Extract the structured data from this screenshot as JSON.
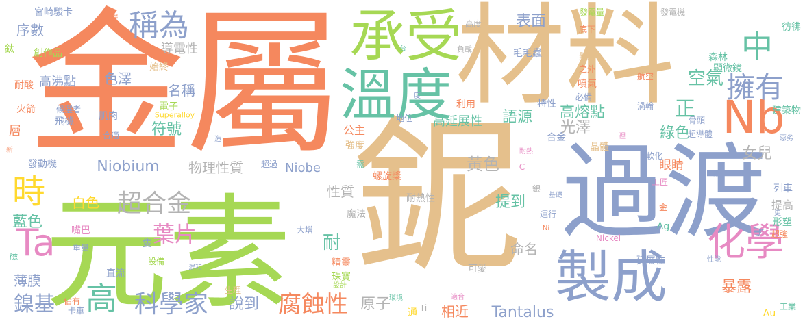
{
  "palette": {
    "orange": "#f5885e",
    "tan": "#e5c08c",
    "green": "#a6d854",
    "blue": "#8da0cb",
    "teal": "#66c2a5",
    "pink": "#e78ac3",
    "yellow": "#ffd92f",
    "gray": "#b3b3b3"
  },
  "words": [
    {
      "text": "鈮",
      "color": "#e5c08c"
    },
    {
      "text": "金屬",
      "color": "#f5885e"
    },
    {
      "text": "元素",
      "color": "#a6d854"
    },
    {
      "text": "材料",
      "color": "#e5c08c"
    },
    {
      "text": "過渡",
      "color": "#8da0cb"
    },
    {
      "text": "承受",
      "color": "#a6d854"
    },
    {
      "text": "溫度",
      "color": "#66c2a5"
    },
    {
      "text": "製成",
      "color": "#8da0cb"
    },
    {
      "text": "Nb",
      "color": "#f5885e"
    },
    {
      "text": "化學",
      "color": "#e78ac3"
    },
    {
      "text": "中",
      "color": "#66c2a5"
    },
    {
      "text": "擁有",
      "color": "#8da0cb"
    },
    {
      "text": "Ta",
      "color": "#e78ac3"
    },
    {
      "text": "時",
      "color": "#ffd92f"
    },
    {
      "text": "稱為",
      "color": "#8da0cb"
    },
    {
      "text": "高",
      "color": "#66c2a5"
    },
    {
      "text": "科學家",
      "color": "#8da0cb"
    },
    {
      "text": "腐蝕性",
      "color": "#f5885e"
    },
    {
      "text": "超合金",
      "color": "#b3b3b3"
    },
    {
      "text": "葉片",
      "color": "#e78ac3"
    },
    {
      "text": "鎳基",
      "color": "#8da0cb"
    },
    {
      "text": "空氣",
      "color": "#66c2a5"
    },
    {
      "text": "正",
      "color": "#66c2a5"
    },
    {
      "text": "表面",
      "color": "#8da0cb"
    },
    {
      "text": "序數",
      "color": "#8da0cb"
    },
    {
      "text": "Niobium",
      "color": "#8da0cb"
    },
    {
      "text": "Niobe",
      "color": "#8da0cb"
    },
    {
      "text": "Tantalus",
      "color": "#8da0cb"
    },
    {
      "text": "高熔點",
      "color": "#66c2a5"
    },
    {
      "text": "光澤",
      "color": "#b3b3b3"
    },
    {
      "text": "綠色",
      "color": "#66c2a5"
    },
    {
      "text": "語源",
      "color": "#66c2a5"
    },
    {
      "text": "女兒",
      "color": "#b3b3b3"
    },
    {
      "text": "暴露",
      "color": "#f5885e"
    },
    {
      "text": "說到",
      "color": "#8da0cb"
    },
    {
      "text": "原子",
      "color": "#b3b3b3"
    },
    {
      "text": "相近",
      "color": "#f5885e"
    },
    {
      "text": "提到",
      "color": "#66c2a5"
    },
    {
      "text": "黃色",
      "color": "#b3b3b3"
    },
    {
      "text": "符號",
      "color": "#66c2a5"
    },
    {
      "text": "白色",
      "color": "#ffd92f"
    },
    {
      "text": "藍色",
      "color": "#66c2a5"
    },
    {
      "text": "薄膜",
      "color": "#8da0cb"
    },
    {
      "text": "物理性質",
      "color": "#b3b3b3"
    },
    {
      "text": "性質",
      "color": "#b3b3b3"
    },
    {
      "text": "高沸點",
      "color": "#8da0cb"
    },
    {
      "text": "色澤",
      "color": "#8da0cb"
    },
    {
      "text": "名稱",
      "color": "#8da0cb"
    },
    {
      "text": "導電性",
      "color": "#b3b3b3"
    },
    {
      "text": "耐",
      "color": "#66c2a5"
    },
    {
      "text": "命名",
      "color": "#b3b3b3"
    },
    {
      "text": "高延展性",
      "color": "#66c2a5"
    },
    {
      "text": "眼睛",
      "color": "#f5885e"
    },
    {
      "text": "提高",
      "color": "#b3b3b3"
    },
    {
      "text": "顯微鏡",
      "color": "#66c2a5"
    },
    {
      "text": "森林",
      "color": "#66c2a5"
    },
    {
      "text": "建築物",
      "color": "#66c2a5"
    },
    {
      "text": "彷彿",
      "color": "#66c2a5"
    },
    {
      "text": "毛毛蟲",
      "color": "#8da0cb"
    },
    {
      "text": "宮崎駿卡",
      "color": "#8da0cb"
    },
    {
      "text": "創作品",
      "color": "#a6d854"
    },
    {
      "text": "鈦",
      "color": "#a6d854"
    },
    {
      "text": "耐酸",
      "color": "#f5885e"
    },
    {
      "text": "始終",
      "color": "#e5c08c"
    },
    {
      "text": "電子",
      "color": "#a6d854"
    },
    {
      "text": "Superalloy",
      "color": "#ffd92f"
    },
    {
      "text": "火箭",
      "color": "#f5885e"
    },
    {
      "text": "候選者",
      "color": "#8da0cb"
    },
    {
      "text": "飛機",
      "color": "#8da0cb"
    },
    {
      "text": "肌肉",
      "color": "#8da0cb"
    },
    {
      "text": "層",
      "color": "#f5885e"
    },
    {
      "text": "合適",
      "color": "#8da0cb"
    },
    {
      "text": "公主",
      "color": "#f5885e"
    },
    {
      "text": "地位",
      "color": "#8da0cb"
    },
    {
      "text": "利用",
      "color": "#f5885e"
    },
    {
      "text": "強度",
      "color": "#e5c08c"
    },
    {
      "text": "特性",
      "color": "#8da0cb"
    },
    {
      "text": "合金",
      "color": "#8da0cb"
    },
    {
      "text": "晶體",
      "color": "#e5c08c"
    },
    {
      "text": "發動機",
      "color": "#8da0cb"
    },
    {
      "text": "超過",
      "color": "#8da0cb"
    },
    {
      "text": "需",
      "color": "#66c2a5"
    },
    {
      "text": "螺旋槳",
      "color": "#f5885e"
    },
    {
      "text": "耐熱性",
      "color": "#b3b3b3"
    },
    {
      "text": "魔法",
      "color": "#b3b3b3"
    },
    {
      "text": "嘴巴",
      "color": "#e78ac3"
    },
    {
      "text": "隻",
      "color": "#8da0cb"
    },
    {
      "text": "重量",
      "color": "#8da0cb"
    },
    {
      "text": "設備",
      "color": "#a6d854"
    },
    {
      "text": "精靈",
      "color": "#f5885e"
    },
    {
      "text": "珠寶",
      "color": "#a6d854"
    },
    {
      "text": "可愛",
      "color": "#b3b3b3"
    },
    {
      "text": "延展性",
      "color": "#8da0cb"
    },
    {
      "text": "Nickel",
      "color": "#e78ac3"
    },
    {
      "text": "形塑",
      "color": "#66c2a5"
    },
    {
      "text": "超強",
      "color": "#f5885e"
    },
    {
      "text": "Ag",
      "color": "#66c2a5"
    },
    {
      "text": "Au",
      "color": "#ffd92f"
    },
    {
      "text": "工業",
      "color": "#66c2a5"
    },
    {
      "text": "列車",
      "color": "#8da0cb"
    },
    {
      "text": "佔有",
      "color": "#f5885e"
    },
    {
      "text": "卡車",
      "color": "#8da0cb"
    },
    {
      "text": "直流",
      "color": "#8da0cb"
    },
    {
      "text": "生理",
      "color": "#e5c08c"
    },
    {
      "text": "設計",
      "color": "#a6d854"
    },
    {
      "text": "環境",
      "color": "#66c2a5"
    },
    {
      "text": "通",
      "color": "#ffd92f"
    },
    {
      "text": "Ti",
      "color": "#b3b3b3"
    },
    {
      "text": "適合",
      "color": "#e78ac3"
    },
    {
      "text": "大增",
      "color": "#8da0cb"
    },
    {
      "text": "混和",
      "color": "#8da0cb"
    },
    {
      "text": "運行",
      "color": "#8da0cb"
    },
    {
      "text": "Ni",
      "color": "#f5885e"
    },
    {
      "text": "銀",
      "color": "#b3b3b3"
    },
    {
      "text": "基礎",
      "color": "#8da0cb"
    },
    {
      "text": "金",
      "color": "#f5885e"
    },
    {
      "text": "工匠",
      "color": "#e78ac3"
    },
    {
      "text": "性能",
      "color": "#8da0cb"
    },
    {
      "text": "磁",
      "color": "#66c2a5"
    },
    {
      "text": "新",
      "color": "#f5885e"
    },
    {
      "text": "造",
      "color": "#8da0cb"
    },
    {
      "text": "骨頭",
      "color": "#8da0cb"
    },
    {
      "text": "航空",
      "color": "#f5885e"
    },
    {
      "text": "渦輪",
      "color": "#8da0cb"
    },
    {
      "text": "噴氣",
      "color": "#f5885e"
    },
    {
      "text": "必備",
      "color": "#8da0cb"
    },
    {
      "text": "之外",
      "color": "#f5885e"
    },
    {
      "text": "懸浮",
      "color": "#e5c08c"
    },
    {
      "text": "底下",
      "color": "#f5885e"
    },
    {
      "text": "發電量",
      "color": "#a6d854"
    },
    {
      "text": "發電機",
      "color": "#b3b3b3"
    },
    {
      "text": "高度",
      "color": "#b3b3b3"
    },
    {
      "text": "負載",
      "color": "#b3b3b3"
    },
    {
      "text": "台",
      "color": "#66c2a5"
    },
    {
      "text": "提升",
      "color": "#f5885e"
    },
    {
      "text": "度",
      "color": "#8da0cb"
    },
    {
      "text": "超導體",
      "color": "#8da0cb"
    },
    {
      "text": "裡",
      "color": "#e78ac3"
    },
    {
      "text": "軟化",
      "color": "#8da0cb"
    },
    {
      "text": "耐熱",
      "color": "#e78ac3"
    },
    {
      "text": "C",
      "color": "#e78ac3"
    },
    {
      "text": "更",
      "color": "#8da0cb"
    },
    {
      "text": "鍍",
      "color": "#8da0cb"
    },
    {
      "text": "惡劣",
      "color": "#8da0cb"
    }
  ]
}
